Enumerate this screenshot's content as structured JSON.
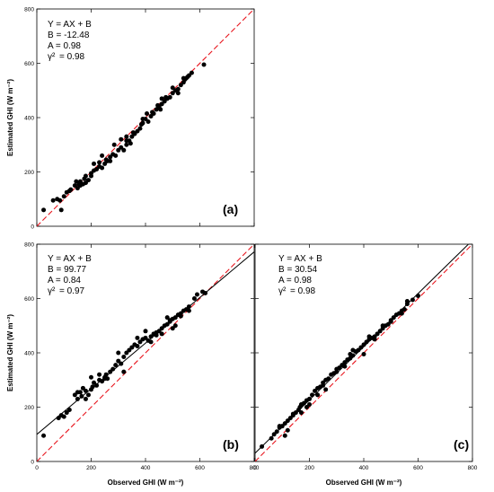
{
  "figure": {
    "y_axis_label": "Estimated GHI (W m⁻²)",
    "x_axis_label": "Observed GHI (W m⁻²)"
  },
  "colors": {
    "points": "#000000",
    "one_to_one_line": "#e8141c",
    "fit_line": "#000000",
    "frame": "#000000"
  },
  "chart_data": [
    {
      "type": "scatter",
      "panel_label": "(a)",
      "xlim": [
        0,
        800
      ],
      "ylim": [
        0,
        800
      ],
      "xticks": [
        "0",
        "200",
        "400",
        "600",
        "800"
      ],
      "yticks": [
        "0",
        "200",
        "400",
        "600",
        "800"
      ],
      "ylabel": "Estimated GHI (W m⁻²)",
      "xlabel": "",
      "show_x_ticklabels": false,
      "show_y_ticklabels": true,
      "stats": {
        "equation": "Y = AX + B",
        "b_text": "B = -12.48",
        "a_text": "A = 0.98",
        "r2_text": "= 0.98",
        "r2_symbol": "γ²"
      },
      "fit": {
        "slope": 0.98,
        "intercept": -12.48,
        "drawn": false
      },
      "one_to_one": true,
      "points": [
        [
          25,
          60
        ],
        [
          60,
          95
        ],
        [
          75,
          100
        ],
        [
          85,
          95
        ],
        [
          90,
          60
        ],
        [
          100,
          110
        ],
        [
          110,
          125
        ],
        [
          120,
          130
        ],
        [
          140,
          150
        ],
        [
          150,
          140
        ],
        [
          155,
          155
        ],
        [
          160,
          165
        ],
        [
          170,
          155
        ],
        [
          175,
          175
        ],
        [
          180,
          185
        ],
        [
          190,
          170
        ],
        [
          200,
          195
        ],
        [
          210,
          205
        ],
        [
          220,
          210
        ],
        [
          230,
          220
        ],
        [
          240,
          215
        ],
        [
          250,
          230
        ],
        [
          255,
          245
        ],
        [
          260,
          240
        ],
        [
          270,
          255
        ],
        [
          280,
          265
        ],
        [
          290,
          260
        ],
        [
          300,
          280
        ],
        [
          310,
          290
        ],
        [
          320,
          280
        ],
        [
          330,
          300
        ],
        [
          340,
          315
        ],
        [
          350,
          330
        ],
        [
          355,
          345
        ],
        [
          360,
          340
        ],
        [
          370,
          350
        ],
        [
          380,
          360
        ],
        [
          385,
          375
        ],
        [
          390,
          380
        ],
        [
          400,
          395
        ],
        [
          410,
          385
        ],
        [
          420,
          405
        ],
        [
          430,
          415
        ],
        [
          440,
          430
        ],
        [
          450,
          440
        ],
        [
          455,
          430
        ],
        [
          460,
          450
        ],
        [
          470,
          460
        ],
        [
          480,
          470
        ],
        [
          490,
          475
        ],
        [
          500,
          490
        ],
        [
          510,
          500
        ],
        [
          520,
          505
        ],
        [
          530,
          520
        ],
        [
          540,
          530
        ],
        [
          545,
          540
        ],
        [
          550,
          545
        ],
        [
          555,
          550
        ],
        [
          560,
          555
        ],
        [
          570,
          565
        ],
        [
          615,
          595
        ],
        [
          145,
          165
        ],
        [
          125,
          135
        ],
        [
          180,
          160
        ],
        [
          210,
          230
        ],
        [
          240,
          260
        ],
        [
          270,
          240
        ],
        [
          310,
          320
        ],
        [
          330,
          330
        ],
        [
          345,
          305
        ],
        [
          390,
          395
        ],
        [
          405,
          415
        ],
        [
          425,
          420
        ],
        [
          445,
          445
        ],
        [
          460,
          470
        ],
        [
          475,
          475
        ],
        [
          500,
          510
        ],
        [
          520,
          490
        ],
        [
          540,
          545
        ],
        [
          200,
          185
        ],
        [
          160,
          150
        ],
        [
          230,
          235
        ],
        [
          285,
          300
        ],
        [
          330,
          315
        ]
      ]
    },
    {
      "type": "scatter",
      "panel_label": "(b)",
      "xlim": [
        0,
        800
      ],
      "ylim": [
        0,
        800
      ],
      "xticks": [
        "0",
        "200",
        "400",
        "600",
        "800"
      ],
      "yticks": [
        "0",
        "200",
        "400",
        "600",
        "800"
      ],
      "ylabel": "Estimated GHI (W m⁻²)",
      "xlabel": "Observed GHI (W m⁻²)",
      "show_x_ticklabels": true,
      "show_y_ticklabels": true,
      "stats": {
        "equation": "Y = AX + B",
        "b_text": "B = 99.77",
        "a_text": "A = 0.84",
        "r2_text": "= 0.97",
        "r2_symbol": "γ²"
      },
      "fit": {
        "slope": 0.84,
        "intercept": 99.77,
        "drawn": true
      },
      "one_to_one": true,
      "points": [
        [
          25,
          95
        ],
        [
          80,
          160
        ],
        [
          90,
          170
        ],
        [
          100,
          165
        ],
        [
          110,
          180
        ],
        [
          120,
          190
        ],
        [
          140,
          245
        ],
        [
          150,
          230
        ],
        [
          160,
          255
        ],
        [
          165,
          240
        ],
        [
          170,
          270
        ],
        [
          180,
          260
        ],
        [
          190,
          245
        ],
        [
          200,
          265
        ],
        [
          205,
          275
        ],
        [
          210,
          290
        ],
        [
          220,
          280
        ],
        [
          230,
          300
        ],
        [
          240,
          295
        ],
        [
          250,
          310
        ],
        [
          255,
          320
        ],
        [
          260,
          305
        ],
        [
          270,
          330
        ],
        [
          280,
          340
        ],
        [
          290,
          355
        ],
        [
          300,
          370
        ],
        [
          310,
          360
        ],
        [
          320,
          385
        ],
        [
          330,
          400
        ],
        [
          340,
          410
        ],
        [
          350,
          420
        ],
        [
          360,
          430
        ],
        [
          370,
          425
        ],
        [
          380,
          440
        ],
        [
          390,
          450
        ],
        [
          400,
          455
        ],
        [
          410,
          445
        ],
        [
          420,
          460
        ],
        [
          430,
          470
        ],
        [
          440,
          475
        ],
        [
          450,
          480
        ],
        [
          460,
          490
        ],
        [
          470,
          500
        ],
        [
          480,
          505
        ],
        [
          490,
          515
        ],
        [
          500,
          525
        ],
        [
          510,
          530
        ],
        [
          520,
          540
        ],
        [
          530,
          545
        ],
        [
          540,
          555
        ],
        [
          550,
          560
        ],
        [
          560,
          570
        ],
        [
          580,
          600
        ],
        [
          590,
          615
        ],
        [
          610,
          625
        ],
        [
          620,
          620
        ],
        [
          150,
          255
        ],
        [
          180,
          230
        ],
        [
          200,
          310
        ],
        [
          230,
          320
        ],
        [
          250,
          305
        ],
        [
          300,
          400
        ],
        [
          320,
          330
        ],
        [
          370,
          455
        ],
        [
          420,
          440
        ],
        [
          460,
          470
        ],
        [
          480,
          530
        ],
        [
          500,
          490
        ],
        [
          530,
          535
        ],
        [
          560,
          555
        ],
        [
          400,
          480
        ],
        [
          440,
          465
        ],
        [
          490,
          520
        ],
        [
          510,
          500
        ]
      ]
    },
    {
      "type": "scatter",
      "panel_label": "(c)",
      "xlim": [
        0,
        800
      ],
      "ylim": [
        0,
        800
      ],
      "xticks": [
        "0",
        "200",
        "400",
        "600",
        "800"
      ],
      "yticks": [
        "0",
        "200",
        "400",
        "600",
        "800"
      ],
      "ylabel": "",
      "xlabel": "Observed GHI (W m⁻²)",
      "show_x_ticklabels": true,
      "show_y_ticklabels": false,
      "stats": {
        "equation": "Y = AX + B",
        "b_text": "B = 30.54",
        "a_text": "A = 0.98",
        "r2_text": "= 0.98",
        "r2_symbol": "γ²"
      },
      "fit": {
        "slope": 0.98,
        "intercept": 30.54,
        "drawn": true
      },
      "one_to_one": true,
      "points": [
        [
          25,
          55
        ],
        [
          60,
          85
        ],
        [
          70,
          100
        ],
        [
          80,
          110
        ],
        [
          90,
          125
        ],
        [
          100,
          130
        ],
        [
          110,
          140
        ],
        [
          120,
          150
        ],
        [
          130,
          160
        ],
        [
          140,
          170
        ],
        [
          150,
          180
        ],
        [
          160,
          190
        ],
        [
          165,
          200
        ],
        [
          170,
          210
        ],
        [
          180,
          215
        ],
        [
          190,
          225
        ],
        [
          200,
          230
        ],
        [
          210,
          245
        ],
        [
          220,
          260
        ],
        [
          230,
          270
        ],
        [
          240,
          275
        ],
        [
          250,
          280
        ],
        [
          260,
          300
        ],
        [
          270,
          305
        ],
        [
          280,
          320
        ],
        [
          290,
          325
        ],
        [
          300,
          340
        ],
        [
          310,
          345
        ],
        [
          320,
          355
        ],
        [
          330,
          365
        ],
        [
          340,
          375
        ],
        [
          350,
          380
        ],
        [
          360,
          390
        ],
        [
          370,
          405
        ],
        [
          380,
          410
        ],
        [
          390,
          420
        ],
        [
          400,
          430
        ],
        [
          410,
          440
        ],
        [
          420,
          450
        ],
        [
          430,
          455
        ],
        [
          440,
          460
        ],
        [
          450,
          470
        ],
        [
          460,
          480
        ],
        [
          470,
          490
        ],
        [
          480,
          500
        ],
        [
          490,
          505
        ],
        [
          500,
          520
        ],
        [
          510,
          530
        ],
        [
          520,
          540
        ],
        [
          530,
          545
        ],
        [
          540,
          555
        ],
        [
          550,
          560
        ],
        [
          560,
          580
        ],
        [
          580,
          595
        ],
        [
          600,
          610
        ],
        [
          110,
          95
        ],
        [
          140,
          175
        ],
        [
          170,
          180
        ],
        [
          200,
          210
        ],
        [
          230,
          245
        ],
        [
          260,
          265
        ],
        [
          300,
          330
        ],
        [
          330,
          350
        ],
        [
          360,
          410
        ],
        [
          400,
          395
        ],
        [
          440,
          450
        ],
        [
          470,
          500
        ],
        [
          500,
          515
        ],
        [
          540,
          545
        ],
        [
          90,
          130
        ],
        [
          120,
          115
        ],
        [
          190,
          200
        ],
        [
          250,
          290
        ],
        [
          350,
          395
        ],
        [
          420,
          460
        ],
        [
          560,
          590
        ]
      ]
    }
  ]
}
